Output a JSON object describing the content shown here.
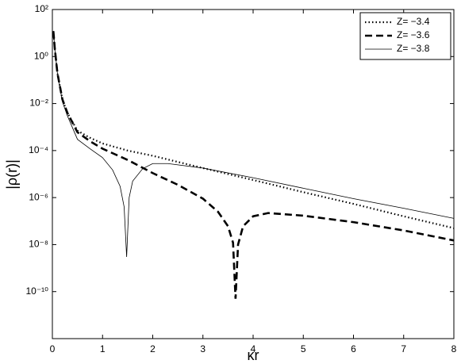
{
  "chart_data": {
    "type": "line",
    "xlabel": "κr",
    "ylabel": "|ρ(r)|",
    "log_y": true,
    "legend": "upper right",
    "xlim": [
      0,
      8
    ],
    "xticks": [
      0,
      1,
      2,
      3,
      4,
      5,
      6,
      7,
      8
    ],
    "ylim": [
      1e-12,
      100
    ],
    "yticks": [
      {
        "value": 100,
        "label": "10²"
      },
      {
        "value": 1,
        "label": "10⁰"
      },
      {
        "value": 0.01,
        "label": "10⁻²"
      },
      {
        "value": 0.0001,
        "label": "10⁻⁴"
      },
      {
        "value": 1e-06,
        "label": "10⁻⁶"
      },
      {
        "value": 1e-08,
        "label": "10⁻⁸"
      },
      {
        "value": 1e-10,
        "label": "10⁻¹⁰"
      }
    ],
    "series": [
      {
        "name": "Z= −3.4",
        "color": "#000000",
        "style": "dotted",
        "width": 2.2,
        "x": [
          0.02,
          0.05,
          0.1,
          0.2,
          0.3,
          0.5,
          0.75,
          1,
          1.5,
          2,
          3,
          4,
          5,
          6,
          7,
          8
        ],
        "values": [
          12,
          2,
          0.2,
          0.015,
          0.004,
          0.0007,
          0.00035,
          0.0002,
          0.0001,
          6e-05,
          1.8e-05,
          5.6e-06,
          1.7e-06,
          5.4e-07,
          1.6e-07,
          5e-08
        ]
      },
      {
        "name": "Z= −3.6",
        "color": "#000000",
        "style": "dashed",
        "width": 2.6,
        "x": [
          0.02,
          0.05,
          0.1,
          0.2,
          0.3,
          0.5,
          0.75,
          1,
          1.5,
          2,
          2.5,
          3,
          3.3,
          3.5,
          3.6,
          3.65,
          3.7,
          3.8,
          4,
          4.3,
          5,
          6,
          7,
          8
        ],
        "values": [
          12,
          2,
          0.2,
          0.015,
          0.004,
          0.0006,
          0.00025,
          0.00012,
          4e-05,
          1.1e-05,
          3.5e-06,
          9e-07,
          2.5e-07,
          6e-08,
          1.2e-08,
          5e-11,
          1e-08,
          6e-08,
          1.6e-07,
          2.2e-07,
          1.7e-07,
          9e-08,
          4e-08,
          1.5e-08
        ]
      },
      {
        "name": "Z= −3.8",
        "color": "#000000",
        "style": "solid",
        "width": 0.8,
        "x": [
          0.02,
          0.05,
          0.1,
          0.2,
          0.3,
          0.5,
          0.75,
          1,
          1.2,
          1.35,
          1.43,
          1.48,
          1.53,
          1.6,
          1.8,
          2,
          2.3,
          3,
          4,
          5,
          6,
          7,
          8
        ],
        "values": [
          12,
          2,
          0.2,
          0.012,
          0.003,
          0.0003,
          0.00012,
          5e-05,
          1.5e-05,
          3e-06,
          4e-07,
          3e-09,
          1e-06,
          5e-06,
          1.7e-05,
          2.8e-05,
          2.8e-05,
          1.8e-05,
          7e-06,
          2.5e-06,
          9e-07,
          3.5e-07,
          1.3e-07
        ]
      }
    ]
  }
}
